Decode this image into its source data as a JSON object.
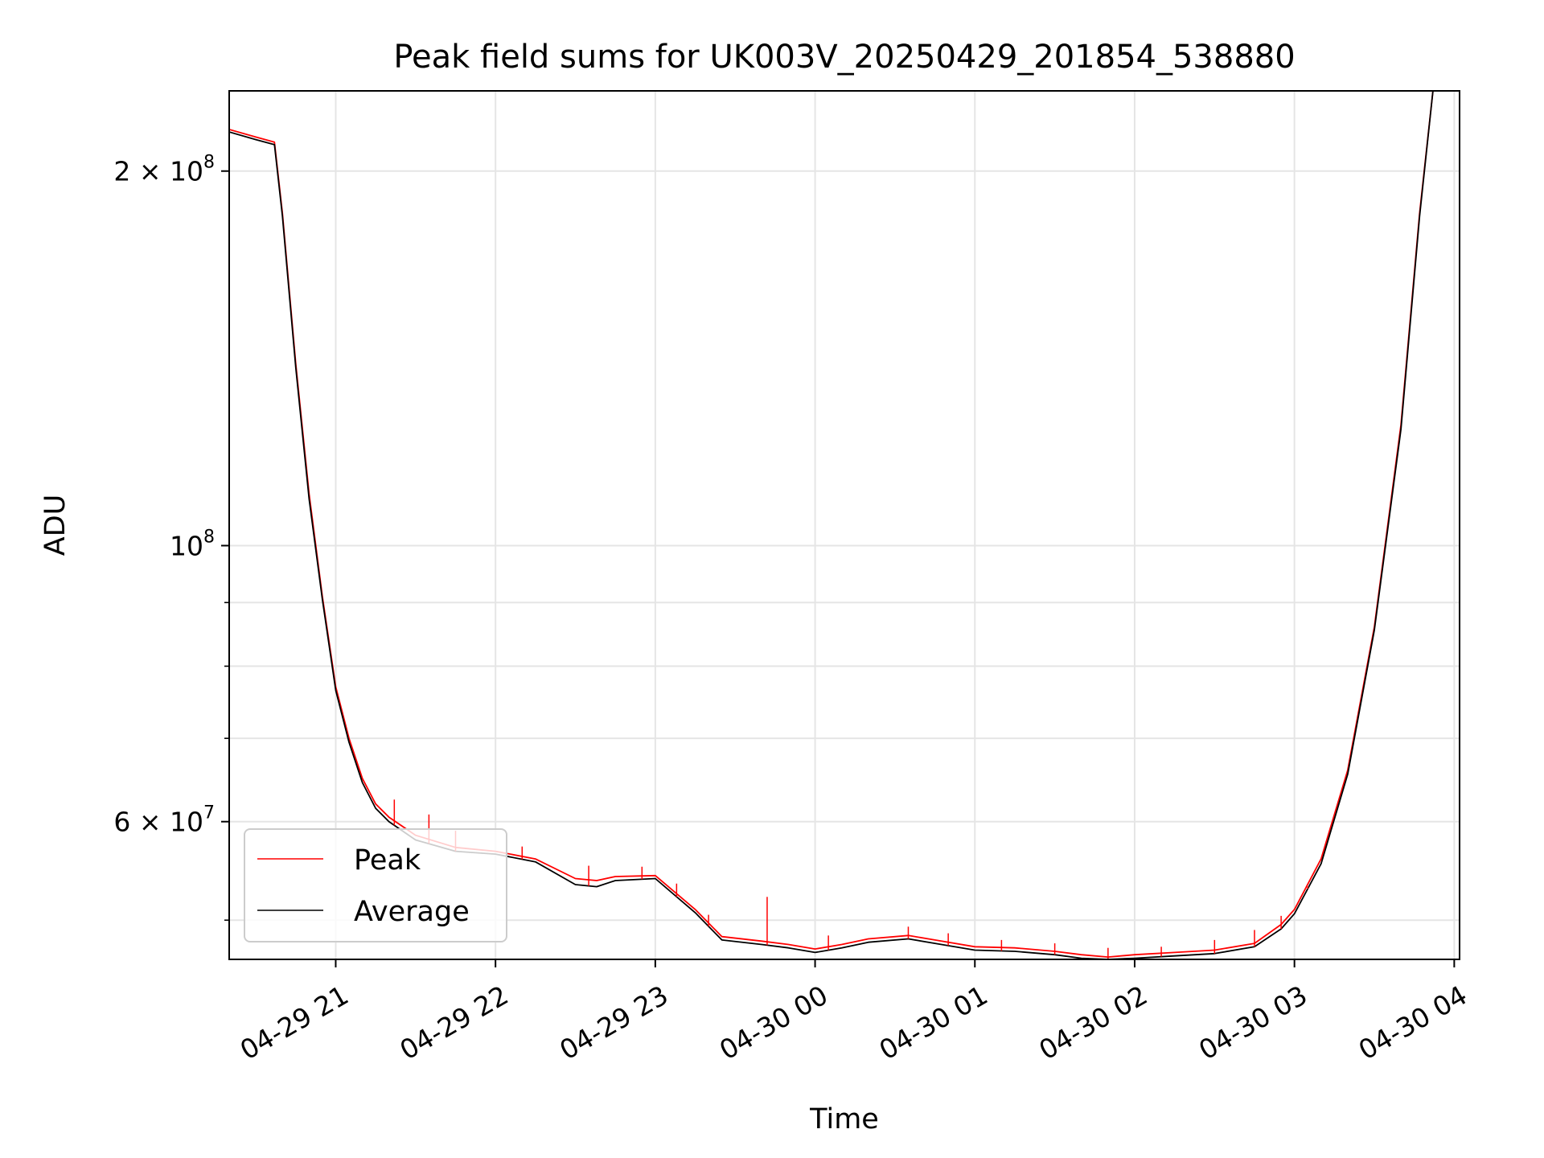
{
  "chart_data": {
    "type": "line",
    "title": "Peak field sums for UK003V_20250429_201854_538880",
    "xlabel": "Time",
    "ylabel": "ADU",
    "y_scale": "log",
    "ylim": [
      46500000,
      232000000
    ],
    "xlim": [
      "2025-04-29 20:20",
      "2025-04-30 04:02"
    ],
    "grid": true,
    "legend_position": "lower-left",
    "x_ticks": [
      {
        "value": "2025-04-29 21:00",
        "label": "04-29 21"
      },
      {
        "value": "2025-04-29 22:00",
        "label": "04-29 22"
      },
      {
        "value": "2025-04-29 23:00",
        "label": "04-29 23"
      },
      {
        "value": "2025-04-30 00:00",
        "label": "04-30 00"
      },
      {
        "value": "2025-04-30 01:00",
        "label": "04-30 01"
      },
      {
        "value": "2025-04-30 02:00",
        "label": "04-30 02"
      },
      {
        "value": "2025-04-30 03:00",
        "label": "04-30 03"
      },
      {
        "value": "2025-04-30 04:00",
        "label": "04-30 04"
      }
    ],
    "y_ticks": [
      {
        "value": 200000000,
        "base": "2 × 10",
        "exp": "8"
      },
      {
        "value": 100000000,
        "base": "10",
        "exp": "8"
      },
      {
        "value": 60000000,
        "base": "6 × 10",
        "exp": "7"
      }
    ],
    "y_minor_ticks": [
      50000000,
      70000000,
      80000000,
      90000000
    ],
    "series": [
      {
        "name": "Peak",
        "color": "#ff0000",
        "x": [
          "2025-04-29 20:20",
          "2025-04-29 20:30",
          "2025-04-29 20:37",
          "2025-04-29 20:40",
          "2025-04-29 20:45",
          "2025-04-29 20:50",
          "2025-04-29 20:55",
          "2025-04-29 21:00",
          "2025-04-29 21:05",
          "2025-04-29 21:10",
          "2025-04-29 21:15",
          "2025-04-29 21:20",
          "2025-04-29 21:30",
          "2025-04-29 21:45",
          "2025-04-29 22:00",
          "2025-04-29 22:15",
          "2025-04-29 22:30",
          "2025-04-29 22:38",
          "2025-04-29 22:45",
          "2025-04-29 23:00",
          "2025-04-29 23:15",
          "2025-04-29 23:25",
          "2025-04-29 23:40",
          "2025-04-29 23:50",
          "2025-04-30 00:00",
          "2025-04-30 00:10",
          "2025-04-30 00:20",
          "2025-04-30 00:35",
          "2025-04-30 00:45",
          "2025-04-30 01:00",
          "2025-04-30 01:15",
          "2025-04-30 01:30",
          "2025-04-30 01:40",
          "2025-04-30 01:50",
          "2025-04-30 02:00",
          "2025-04-30 02:15",
          "2025-04-30 02:30",
          "2025-04-30 02:45",
          "2025-04-30 02:55",
          "2025-04-30 03:00",
          "2025-04-30 03:10",
          "2025-04-30 03:20",
          "2025-04-30 03:30",
          "2025-04-30 03:40",
          "2025-04-30 03:47",
          "2025-04-30 03:52"
        ],
        "values": [
          216000000,
          213000000,
          211000000,
          185000000,
          140000000,
          110000000,
          91000000,
          77000000,
          70000000,
          65000000,
          62000000,
          60500000,
          58500000,
          57200000,
          56800000,
          56000000,
          54000000,
          53800000,
          54200000,
          54300000,
          51000000,
          48500000,
          48100000,
          47800000,
          47400000,
          47800000,
          48300000,
          48600000,
          48200000,
          47600000,
          47500000,
          47200000,
          46900000,
          46700000,
          46900000,
          47100000,
          47300000,
          47900000,
          49600000,
          51000000,
          56000000,
          66000000,
          86000000,
          125000000,
          185000000,
          232000000
        ]
      },
      {
        "name": "Average",
        "color": "#000000",
        "x": [
          "2025-04-29 20:20",
          "2025-04-29 20:30",
          "2025-04-29 20:37",
          "2025-04-29 20:40",
          "2025-04-29 20:45",
          "2025-04-29 20:50",
          "2025-04-29 20:55",
          "2025-04-29 21:00",
          "2025-04-29 21:05",
          "2025-04-29 21:10",
          "2025-04-29 21:15",
          "2025-04-29 21:20",
          "2025-04-29 21:30",
          "2025-04-29 21:45",
          "2025-04-29 22:00",
          "2025-04-29 22:15",
          "2025-04-29 22:30",
          "2025-04-29 22:38",
          "2025-04-29 22:45",
          "2025-04-29 23:00",
          "2025-04-29 23:15",
          "2025-04-29 23:25",
          "2025-04-29 23:40",
          "2025-04-29 23:50",
          "2025-04-30 00:00",
          "2025-04-30 00:10",
          "2025-04-30 00:20",
          "2025-04-30 00:35",
          "2025-04-30 00:45",
          "2025-04-30 01:00",
          "2025-04-30 01:15",
          "2025-04-30 01:30",
          "2025-04-30 01:40",
          "2025-04-30 01:50",
          "2025-04-30 02:00",
          "2025-04-30 02:15",
          "2025-04-30 02:30",
          "2025-04-30 02:45",
          "2025-04-30 02:55",
          "2025-04-30 03:00",
          "2025-04-30 03:10",
          "2025-04-30 03:20",
          "2025-04-30 03:30",
          "2025-04-30 03:40",
          "2025-04-30 03:47",
          "2025-04-30 03:52"
        ],
        "values": [
          215000000,
          212000000,
          210000000,
          184000000,
          139000000,
          109000000,
          90500000,
          76500000,
          69500000,
          64500000,
          61500000,
          60000000,
          58000000,
          56800000,
          56500000,
          55700000,
          53400000,
          53200000,
          53800000,
          54000000,
          50700000,
          48200000,
          47800000,
          47500000,
          47100000,
          47500000,
          48000000,
          48300000,
          47900000,
          47300000,
          47200000,
          46900000,
          46600000,
          46500000,
          46600000,
          46800000,
          47000000,
          47600000,
          49200000,
          50600000,
          55500000,
          65500000,
          85500000,
          124000000,
          184000000,
          232000000
        ]
      }
    ],
    "spikes": [
      {
        "x": "2025-04-29 21:22",
        "value": 62500000
      },
      {
        "x": "2025-04-29 21:35",
        "value": 60800000
      },
      {
        "x": "2025-04-29 21:45",
        "value": 59000000
      },
      {
        "x": "2025-04-29 22:10",
        "value": 57300000
      },
      {
        "x": "2025-04-29 22:35",
        "value": 55300000
      },
      {
        "x": "2025-04-29 22:55",
        "value": 55200000
      },
      {
        "x": "2025-04-29 23:08",
        "value": 53500000
      },
      {
        "x": "2025-04-29 23:20",
        "value": 50500000
      },
      {
        "x": "2025-04-29 23:42",
        "value": 52200000
      },
      {
        "x": "2025-04-30 00:05",
        "value": 48600000
      },
      {
        "x": "2025-04-30 00:35",
        "value": 49400000
      },
      {
        "x": "2025-04-30 00:50",
        "value": 48800000
      },
      {
        "x": "2025-04-30 01:10",
        "value": 48200000
      },
      {
        "x": "2025-04-30 01:30",
        "value": 47900000
      },
      {
        "x": "2025-04-30 01:50",
        "value": 47500000
      },
      {
        "x": "2025-04-30 02:10",
        "value": 47600000
      },
      {
        "x": "2025-04-30 02:30",
        "value": 48200000
      },
      {
        "x": "2025-04-30 02:45",
        "value": 49100000
      },
      {
        "x": "2025-04-30 02:55",
        "value": 50400000
      },
      {
        "x": "2025-04-30 03:05",
        "value": 53200000
      }
    ]
  }
}
